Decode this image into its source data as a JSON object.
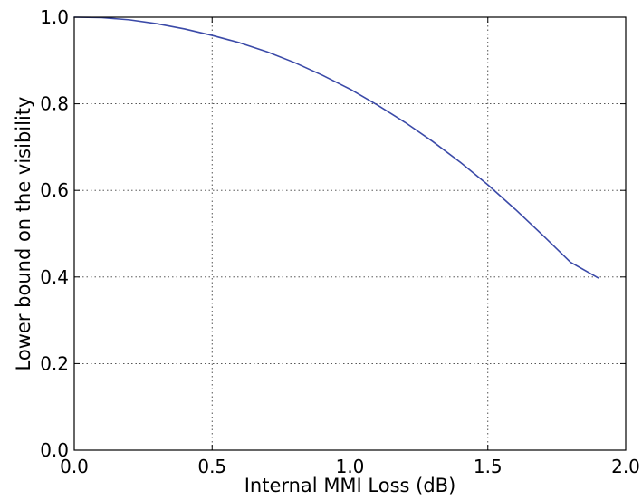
{
  "chart_data": {
    "type": "line",
    "title": "",
    "xlabel": "Internal MMI Loss (dB)",
    "ylabel": "Lower bound on the visibility",
    "xlim": [
      0.0,
      2.0
    ],
    "ylim": [
      0.0,
      1.0
    ],
    "xticks": [
      0.0,
      0.5,
      1.0,
      1.5,
      2.0
    ],
    "xtick_labels": [
      "0.0",
      "0.5",
      "1.0",
      "1.5",
      "2.0"
    ],
    "yticks": [
      0.0,
      0.2,
      0.4,
      0.6,
      0.8,
      1.0
    ],
    "ytick_labels": [
      "0.0",
      "0.2",
      "0.4",
      "0.6",
      "0.8",
      "1.0"
    ],
    "grid": true,
    "legend": "none",
    "series": [
      {
        "color": "#3b4aa8",
        "x": [
          0.0,
          0.1,
          0.2,
          0.3,
          0.4,
          0.5,
          0.6,
          0.7,
          0.8,
          0.9,
          1.0,
          1.1,
          1.2,
          1.3,
          1.4,
          1.5,
          1.6,
          1.7,
          1.8,
          1.9
        ],
        "y": [
          1.0,
          0.999,
          0.994,
          0.985,
          0.973,
          0.958,
          0.941,
          0.92,
          0.895,
          0.866,
          0.834,
          0.797,
          0.757,
          0.713,
          0.665,
          0.613,
          0.556,
          0.496,
          0.434,
          0.398
        ]
      }
    ]
  }
}
